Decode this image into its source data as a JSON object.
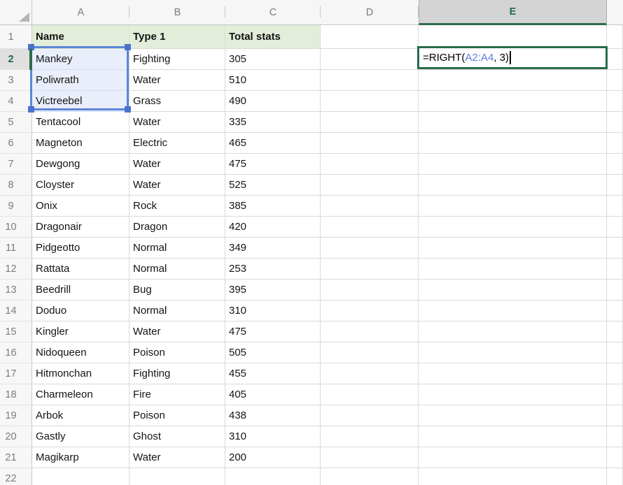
{
  "sheet": {
    "column_letters": [
      "A",
      "B",
      "C",
      "D",
      "E"
    ],
    "active_column_letter": "E",
    "active_row_number": "2",
    "row_count": 22
  },
  "header_row": {
    "name": "Name",
    "type": "Type 1",
    "total": "Total stats"
  },
  "rows": [
    {
      "name": "Mankey",
      "type": "Fighting",
      "total": "305"
    },
    {
      "name": "Poliwrath",
      "type": "Water",
      "total": "510"
    },
    {
      "name": "Victreebel",
      "type": "Grass",
      "total": "490"
    },
    {
      "name": "Tentacool",
      "type": "Water",
      "total": "335"
    },
    {
      "name": "Magneton",
      "type": "Electric",
      "total": "465"
    },
    {
      "name": "Dewgong",
      "type": "Water",
      "total": "475"
    },
    {
      "name": "Cloyster",
      "type": "Water",
      "total": "525"
    },
    {
      "name": "Onix",
      "type": "Rock",
      "total": "385"
    },
    {
      "name": "Dragonair",
      "type": "Dragon",
      "total": "420"
    },
    {
      "name": "Pidgeotto",
      "type": "Normal",
      "total": "349"
    },
    {
      "name": "Rattata",
      "type": "Normal",
      "total": "253"
    },
    {
      "name": "Beedrill",
      "type": "Bug",
      "total": "395"
    },
    {
      "name": "Doduo",
      "type": "Normal",
      "total": "310"
    },
    {
      "name": "Kingler",
      "type": "Water",
      "total": "475"
    },
    {
      "name": "Nidoqueen",
      "type": "Poison",
      "total": "505"
    },
    {
      "name": "Hitmonchan",
      "type": "Fighting",
      "total": "455"
    },
    {
      "name": "Charmeleon",
      "type": "Fire",
      "total": "405"
    },
    {
      "name": "Arbok",
      "type": "Poison",
      "total": "438"
    },
    {
      "name": "Gastly",
      "type": "Ghost",
      "total": "310"
    },
    {
      "name": "Magikarp",
      "type": "Water",
      "total": "200"
    }
  ],
  "formula": {
    "parts": [
      {
        "text": "=RIGHT(",
        "color": "#000000"
      },
      {
        "text": "A2:A4",
        "color": "#5b7edb"
      },
      {
        "text": ", 3)",
        "color": "#000000"
      }
    ],
    "referenced_range": "A2:A4"
  },
  "colors": {
    "accent_green": "#2e6b4b",
    "active_header_text_green": "#1f6b46",
    "selection_border_blue": "#5b86d8",
    "selection_handle_blue": "#4a73cf",
    "selection_fill_blue": "#e9eefa",
    "header_fill_green": "#e3eeda",
    "formula_ref_blue": "#5b7edb",
    "gridline_gray": "#d9d9d9"
  }
}
